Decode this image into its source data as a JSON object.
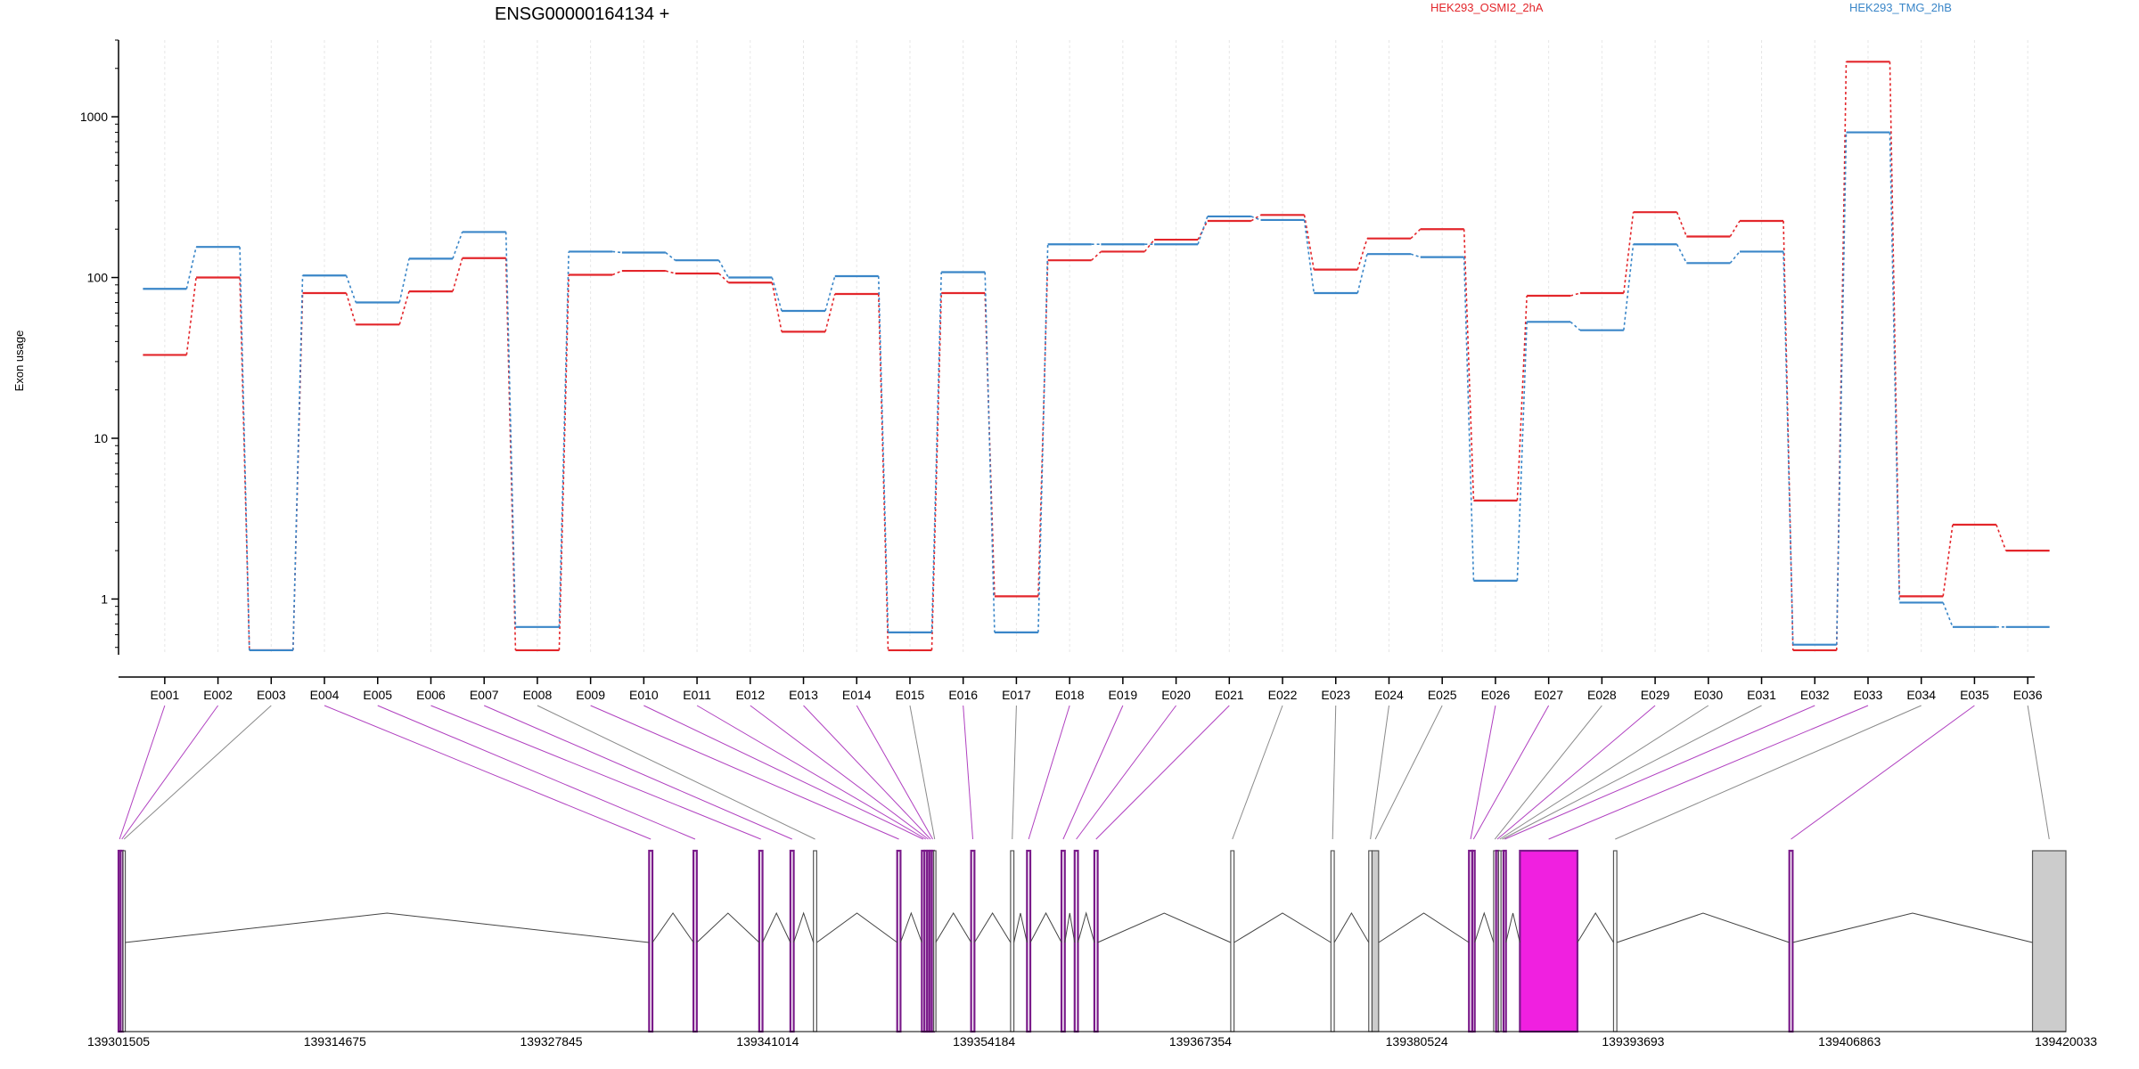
{
  "chart_data": {
    "type": "line",
    "title": "ENSG00000164134 +",
    "ylabel": "Exon usage",
    "xlabel": "",
    "yscale": "log",
    "ylim": [
      0.45,
      3000
    ],
    "y_ticks": [
      1,
      10,
      100,
      1000
    ],
    "y_tick_labels": [
      "1",
      "10",
      "100",
      "1000"
    ],
    "grid": "vertical",
    "legend_position": "top-right",
    "categories": [
      "E001",
      "E002",
      "E003",
      "E004",
      "E005",
      "E006",
      "E007",
      "E008",
      "E009",
      "E010",
      "E011",
      "E012",
      "E013",
      "E014",
      "E015",
      "E016",
      "E017",
      "E018",
      "E019",
      "E020",
      "E021",
      "E022",
      "E023",
      "E024",
      "E025",
      "E026",
      "E027",
      "E028",
      "E029",
      "E030",
      "E031",
      "E032",
      "E033",
      "E034",
      "E035",
      "E036"
    ],
    "series": [
      {
        "name": "HEK293_OSMI2_2hA",
        "color": "#e3262b",
        "values": [
          33,
          100,
          0.48,
          80,
          51,
          82,
          132,
          0.48,
          104,
          110,
          106,
          93,
          46,
          79,
          0.48,
          80,
          1.04,
          128,
          145,
          172,
          225,
          245,
          112,
          175,
          200,
          4.1,
          77,
          80,
          255,
          180,
          225,
          0.48,
          2200,
          1.04,
          2.9,
          2.0
        ]
      },
      {
        "name": "HEK293_TMG_2hB",
        "color": "#3a86c8",
        "values": [
          85,
          155,
          0.48,
          103,
          70,
          131,
          192,
          0.67,
          145,
          143,
          128,
          100,
          62,
          102,
          0.62,
          108,
          0.62,
          161,
          161,
          161,
          240,
          228,
          80,
          140,
          134,
          1.3,
          53,
          47,
          161,
          123,
          145,
          0.52,
          800,
          0.95,
          0.67,
          0.67
        ]
      }
    ],
    "gene_model": {
      "genomic_ticks": [
        "139301505",
        "139314675",
        "139327845",
        "139341014",
        "139354184",
        "139367354",
        "139380524",
        "139393693",
        "139406863",
        "139420033"
      ],
      "exons": [
        {
          "id": "E001",
          "start": 139301505,
          "end": 139301630,
          "highlight": true
        },
        {
          "id": "E002",
          "start": 139301630,
          "end": 139301780,
          "highlight": true
        },
        {
          "id": "E003",
          "start": 139301780,
          "end": 139301900,
          "highlight": false
        },
        {
          "id": "E004",
          "start": 139333800,
          "end": 139334000,
          "highlight": true
        },
        {
          "id": "E005",
          "start": 139336500,
          "end": 139336700,
          "highlight": true
        },
        {
          "id": "E006",
          "start": 139340500,
          "end": 139340700,
          "highlight": true
        },
        {
          "id": "E007",
          "start": 139342400,
          "end": 139342600,
          "highlight": true
        },
        {
          "id": "E008",
          "start": 139343800,
          "end": 139344000,
          "highlight": false
        },
        {
          "id": "E009",
          "start": 139348900,
          "end": 139349100,
          "highlight": true
        },
        {
          "id": "E010",
          "start": 139350400,
          "end": 139350560,
          "highlight": true
        },
        {
          "id": "E011",
          "start": 139350560,
          "end": 139350720,
          "highlight": true
        },
        {
          "id": "E012",
          "start": 139350720,
          "end": 139350860,
          "highlight": true
        },
        {
          "id": "E013",
          "start": 139350860,
          "end": 139351000,
          "highlight": true
        },
        {
          "id": "E014",
          "start": 139351000,
          "end": 139351120,
          "highlight": true
        },
        {
          "id": "E015",
          "start": 139351120,
          "end": 139351240,
          "highlight": false
        },
        {
          "id": "E016",
          "start": 139353400,
          "end": 139353600,
          "highlight": true
        },
        {
          "id": "E017",
          "start": 139355800,
          "end": 139356000,
          "highlight": false
        },
        {
          "id": "E018",
          "start": 139356800,
          "end": 139357000,
          "highlight": true
        },
        {
          "id": "E019",
          "start": 139358900,
          "end": 139359100,
          "highlight": true
        },
        {
          "id": "E020",
          "start": 139359700,
          "end": 139359900,
          "highlight": true
        },
        {
          "id": "E021",
          "start": 139360900,
          "end": 139361100,
          "highlight": true
        },
        {
          "id": "E022",
          "start": 139369200,
          "end": 139369400,
          "highlight": false
        },
        {
          "id": "E023",
          "start": 139375300,
          "end": 139375500,
          "highlight": false
        },
        {
          "id": "E024",
          "start": 139377600,
          "end": 139377800,
          "highlight": false
        },
        {
          "id": "E025",
          "start": 139377800,
          "end": 139378200,
          "highlight": false,
          "filled": true
        },
        {
          "id": "E026",
          "start": 139383700,
          "end": 139383900,
          "highlight": true
        },
        {
          "id": "E027",
          "start": 139383900,
          "end": 139384050,
          "highlight": true
        },
        {
          "id": "E028",
          "start": 139385200,
          "end": 139385350,
          "highlight": false
        },
        {
          "id": "E029",
          "start": 139385350,
          "end": 139385500,
          "highlight": true
        },
        {
          "id": "E030",
          "start": 139385500,
          "end": 139385650,
          "highlight": false
        },
        {
          "id": "E031",
          "start": 139385650,
          "end": 139385800,
          "highlight": false
        },
        {
          "id": "E032",
          "start": 139385800,
          "end": 139385950,
          "highlight": true
        },
        {
          "id": "E033",
          "start": 139386800,
          "end": 139390300,
          "highlight": true,
          "filled": true
        },
        {
          "id": "E034",
          "start": 139392500,
          "end": 139392700,
          "highlight": false
        },
        {
          "id": "E035",
          "start": 139403200,
          "end": 139403400,
          "highlight": true
        },
        {
          "id": "E036",
          "start": 139418000,
          "end": 139420033,
          "highlight": false,
          "filled": true
        }
      ]
    }
  }
}
